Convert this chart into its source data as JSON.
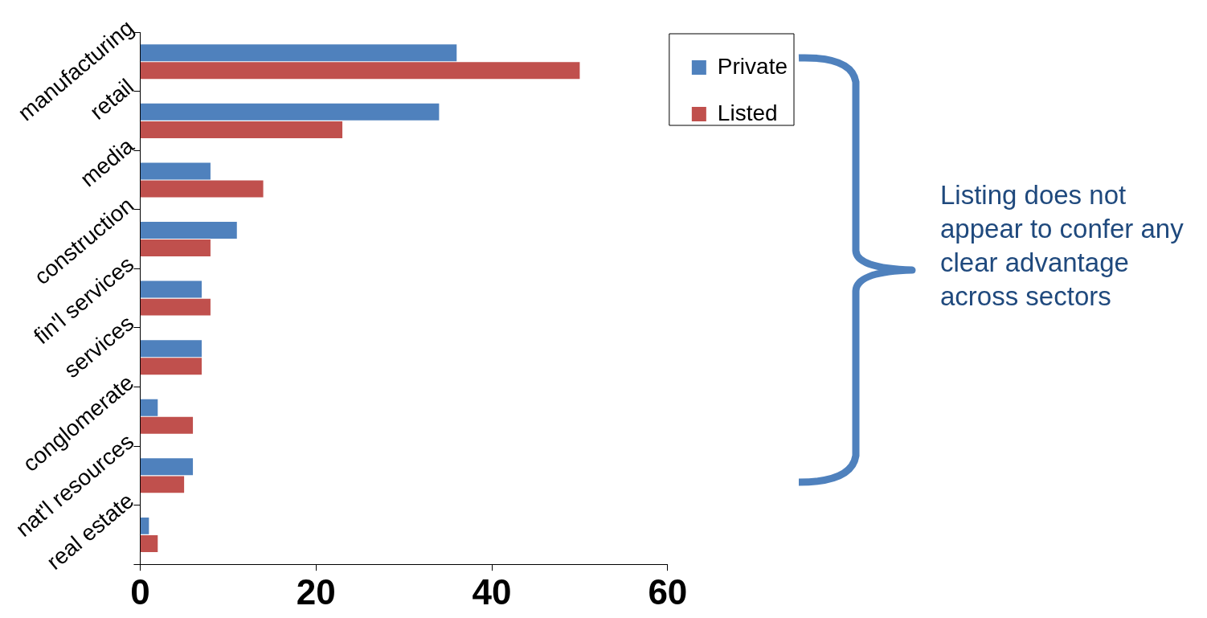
{
  "chart_data": {
    "type": "bar",
    "orientation": "horizontal",
    "categories": [
      "manufacturing",
      "retail",
      "media",
      "construction",
      "fin'l services",
      "services",
      "conglomerate",
      "nat'l resources",
      "real estate"
    ],
    "series": [
      {
        "name": "Private",
        "color": "#4f81bd",
        "values": [
          36,
          34,
          8,
          11,
          7,
          7,
          2,
          6,
          1
        ]
      },
      {
        "name": "Listed",
        "color": "#c0504d",
        "values": [
          50,
          23,
          14,
          8,
          8,
          7,
          6,
          5,
          2
        ]
      }
    ],
    "xlim": [
      0,
      60
    ],
    "xticks": [
      0,
      20,
      40,
      60
    ],
    "grid": false,
    "legend": "top right",
    "annotations": [
      "Listing does not appear to confer any clear advantage across sectors"
    ]
  }
}
